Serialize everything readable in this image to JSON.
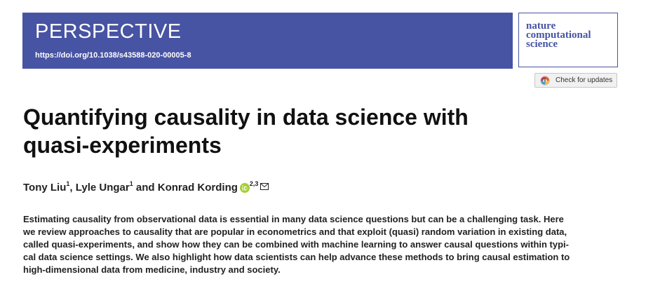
{
  "banner": {
    "kind": "PERSPECTIVE",
    "doi": "https://doi.org/10.1038/s43588-020-00005-8"
  },
  "journal": {
    "line1": "nature",
    "line2": "computational",
    "line3": "science"
  },
  "updates_button": {
    "label": "Check for updates"
  },
  "article": {
    "title_lines": [
      "Quantifying causality in data science with",
      "quasi-experiments"
    ],
    "authors": {
      "author1": "Tony Liu",
      "author1_sup": "1",
      "sep1": ", ",
      "author2": "Lyle Ungar",
      "author2_sup": "1",
      "sep2": " and ",
      "author3": "Konrad Kording",
      "author3_sup": "2,3"
    },
    "abstract_lines": [
      "Estimating causality from observational data is essential in many data science questions but can be a challenging task. Here",
      "we review approaches to causality that are popular in econometrics and that exploit (quasi) random variation in existing data,",
      "called quasi-experiments, and show how they can be combined with machine learning to answer causal questions within typi-",
      "cal data science settings. We also highlight how data scientists can help advance these methods to bring causal estimation to",
      "high-dimensional data from medicine, industry and society."
    ]
  },
  "colors": {
    "banner": "#4753a3",
    "orcid": "#a6ce39"
  }
}
